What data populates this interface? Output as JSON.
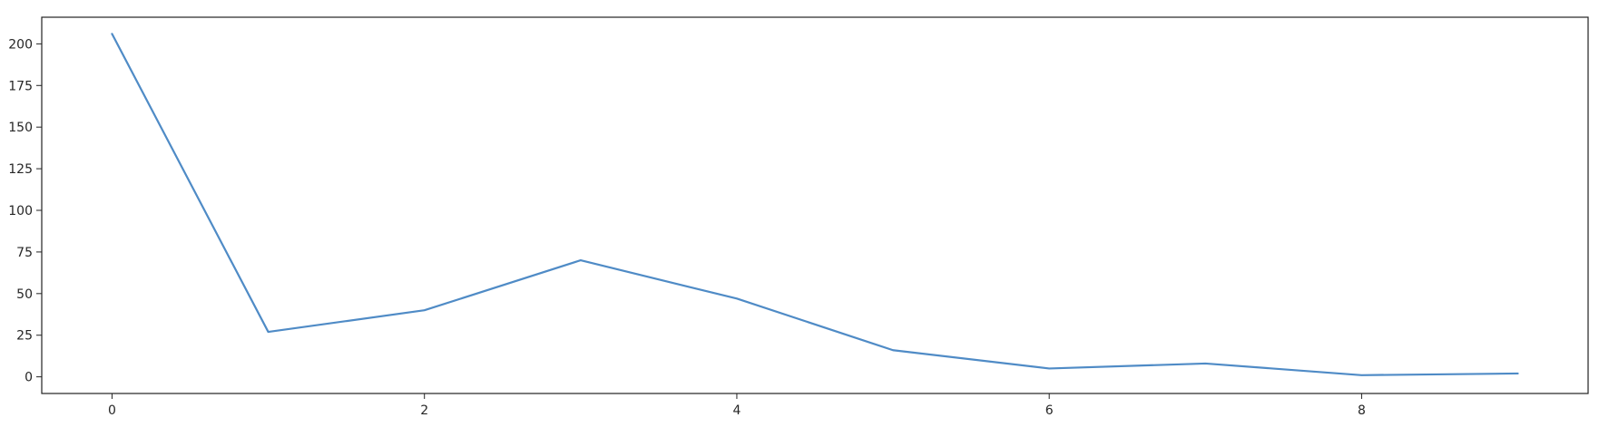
{
  "chart_data": {
    "type": "line",
    "title": "",
    "xlabel": "",
    "ylabel": "",
    "x": [
      0,
      1,
      2,
      3,
      4,
      5,
      6,
      7,
      8,
      9
    ],
    "series": [
      {
        "color": "#4f8bc6",
        "values": [
          206,
          27,
          40,
          70,
          47,
          16,
          5,
          8,
          1,
          2
        ]
      }
    ],
    "xlim": [
      -0.45,
      9.45
    ],
    "ylim": [
      -10,
      216
    ],
    "xticks": [
      0,
      2,
      4,
      6,
      8
    ],
    "yticks": [
      0,
      25,
      50,
      75,
      100,
      125,
      150,
      175,
      200
    ],
    "grid": false,
    "legend": "none"
  }
}
